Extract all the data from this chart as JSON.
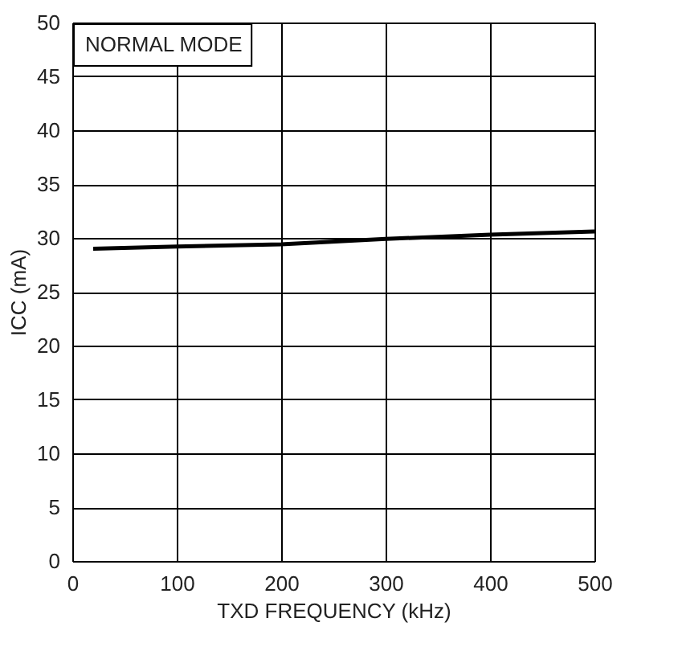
{
  "chart_data": {
    "type": "line",
    "xlabel": "TXD FREQUENCY (kHz)",
    "ylabel": "ICC (mA)",
    "annotations": [
      "NORMAL MODE"
    ],
    "x": [
      20,
      100,
      200,
      300,
      400,
      500
    ],
    "series": [
      {
        "color": "#000000",
        "values": [
          29.0,
          29.2,
          29.4,
          29.9,
          30.3,
          30.6
        ]
      }
    ],
    "xlim": [
      0,
      500
    ],
    "xticks": [
      0,
      100,
      200,
      300,
      400,
      500
    ],
    "ylim": [
      0,
      50
    ],
    "yticks": [
      0,
      5,
      10,
      15,
      20,
      25,
      30,
      35,
      40,
      45,
      50
    ],
    "grid": true,
    "marker": "none",
    "line_style": "solid"
  }
}
